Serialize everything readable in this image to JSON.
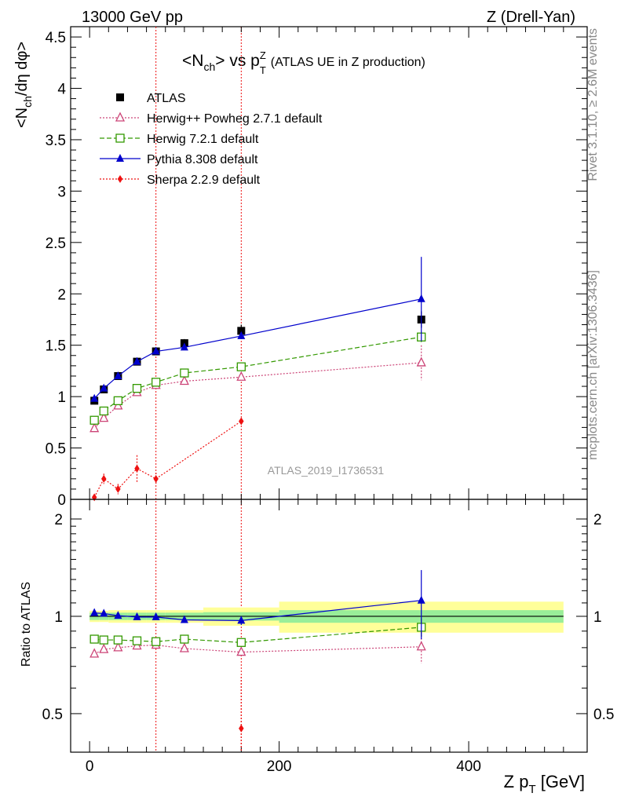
{
  "header": {
    "left": "13000 GeV pp",
    "right": "Z (Drell-Yan)"
  },
  "side_labels": {
    "rivet": "Rivet 3.1.10, ≥ 2.6M events",
    "mcplots": "mcplots.cern.ch [arXiv:1306.3436]"
  },
  "watermark": "ATLAS_2019_I1736531",
  "chart_data": {
    "type": "scatter",
    "title": {
      "main": "<N",
      "main_sub": "ch",
      "mid": "> vs p",
      "mid_sup": "Z",
      "mid_sub": "T",
      "suffix": "(ATLAS UE in Z production)"
    },
    "ylabel": "<N_ch/dη dφ>",
    "ylabel_parts": {
      "a": "<N",
      "sub": "ch",
      "b": "/dη dφ>"
    },
    "ratio_ylabel": "Ratio to ATLAS",
    "xlabel": {
      "a": "Z p",
      "sub": "T",
      "b": " [GeV]"
    },
    "xlim": [
      -20,
      525
    ],
    "ylim": [
      0,
      4.6
    ],
    "ratio_ylim": [
      0.38,
      2.3
    ],
    "x_ticks": [
      0,
      200,
      400
    ],
    "y_ticks": [
      0,
      0.5,
      1,
      1.5,
      2,
      2.5,
      3,
      3.5,
      4,
      4.5
    ],
    "y_tick_labels": [
      "0",
      "0.5",
      "1",
      "1.5",
      "2",
      "2.5",
      "3",
      "3.5",
      "4",
      "4.5"
    ],
    "ratio_ticks": [
      0.5,
      1,
      2
    ],
    "ratio_tick_labels": [
      "0.5",
      "1",
      "2"
    ],
    "vlines": [
      70,
      160
    ],
    "x": [
      5,
      15,
      30,
      50,
      70,
      100,
      160,
      350
    ],
    "bins": [
      [
        0,
        10
      ],
      [
        10,
        20
      ],
      [
        20,
        40
      ],
      [
        40,
        60
      ],
      [
        60,
        80
      ],
      [
        80,
        120
      ],
      [
        120,
        200
      ],
      [
        200,
        500
      ]
    ],
    "band_inner": [
      0.026,
      0.026,
      0.026,
      0.026,
      0.026,
      0.026,
      0.03,
      0.045
    ],
    "band_outer": [
      0.04,
      0.04,
      0.045,
      0.045,
      0.045,
      0.045,
      0.065,
      0.11
    ],
    "series": [
      {
        "name": "ATLAS",
        "marker": "square-filled",
        "color": "#000000",
        "line": "none",
        "y": [
          0.96,
          1.07,
          1.2,
          1.34,
          1.44,
          1.52,
          1.64,
          1.75
        ],
        "err": [
          0.02,
          0.02,
          0.02,
          0.03,
          0.03,
          0.04,
          0.06,
          0.08
        ]
      },
      {
        "name": "Herwig++ Powheg 2.7.1 default",
        "marker": "triangle-open",
        "color": "#cc4477",
        "line": "dotted",
        "y": [
          0.69,
          0.79,
          0.91,
          1.04,
          1.11,
          1.15,
          1.19,
          1.33
        ],
        "err": [
          0.01,
          0.01,
          0.01,
          0.02,
          0.02,
          0.02,
          0.02,
          0.17
        ],
        "ratio": [
          0.765,
          0.79,
          0.8,
          0.81,
          0.815,
          0.795,
          0.775,
          0.805
        ],
        "ratio_err": [
          0.01,
          0.01,
          0.01,
          0.01,
          0.01,
          0.01,
          0.02,
          0.09
        ]
      },
      {
        "name": "Herwig 7.2.1 default",
        "marker": "square-open",
        "color": "#339900",
        "line": "dashed",
        "y": [
          0.77,
          0.86,
          0.96,
          1.08,
          1.14,
          1.23,
          1.29,
          1.58
        ],
        "err": [
          0.01,
          0.01,
          0.01,
          0.02,
          0.02,
          0.02,
          0.03,
          0.05
        ],
        "ratio": [
          0.85,
          0.845,
          0.845,
          0.84,
          0.835,
          0.85,
          0.83,
          0.925
        ],
        "ratio_err": [
          0.01,
          0.01,
          0.01,
          0.01,
          0.01,
          0.01,
          0.02,
          0.06
        ]
      },
      {
        "name": "Pythia 8.308 default",
        "marker": "triangle-filled",
        "color": "#0000cc",
        "line": "solid",
        "y": [
          0.98,
          1.08,
          1.2,
          1.34,
          1.44,
          1.48,
          1.59,
          1.95
        ],
        "err": [
          0.01,
          0.01,
          0.01,
          0.02,
          0.02,
          0.02,
          0.03,
          0.41
        ],
        "ratio": [
          1.025,
          1.02,
          1.005,
          0.995,
          0.995,
          0.975,
          0.97,
          1.12
        ],
        "ratio_err": [
          0.01,
          0.01,
          0.01,
          0.01,
          0.01,
          0.01,
          0.03,
          0.27
        ]
      },
      {
        "name": "Sherpa 2.2.9 default",
        "marker": "diamond-filled",
        "color": "#ee1111",
        "line": "dotted",
        "y": [
          0.02,
          0.2,
          0.1,
          0.3,
          0.2,
          null,
          0.76,
          null
        ],
        "err": [
          0.02,
          0.05,
          0.05,
          0.13,
          0.06,
          null,
          0.03,
          null
        ],
        "ratio": [
          null,
          null,
          null,
          null,
          null,
          null,
          0.45,
          null
        ],
        "ratio_err": [
          null,
          null,
          null,
          null,
          null,
          null,
          0.2,
          null
        ]
      }
    ]
  }
}
